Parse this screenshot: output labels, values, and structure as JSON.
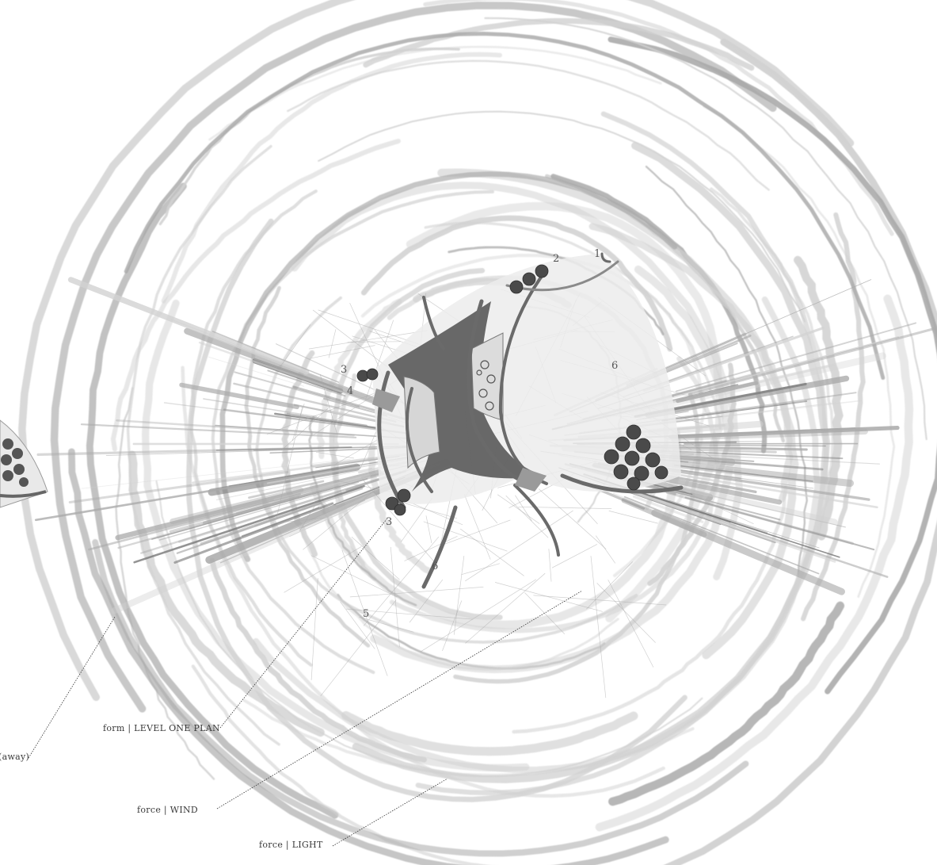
{
  "labels": {
    "form_plan": "form | LEVEL ONE PLAN",
    "wind": "force | WIND",
    "light": "force | LIGHT",
    "away": "(away)"
  },
  "plan_numbers": {
    "n1": "1",
    "n2": "2",
    "n3a": "3",
    "n3b": "3",
    "n4": "4",
    "n5": "5",
    "n6": "6",
    "n6b": "6"
  },
  "colors": {
    "stroke_light": "#d2d2d2",
    "stroke_mid": "#a9a9a9",
    "stroke_dark": "#7a7a7a",
    "plan_core": "#5c5c5c",
    "wall": "#6a6a6a",
    "tree": "#4a4a4a",
    "leader": "#333333"
  },
  "icons": {
    "trees": "tree-cluster-icon"
  }
}
